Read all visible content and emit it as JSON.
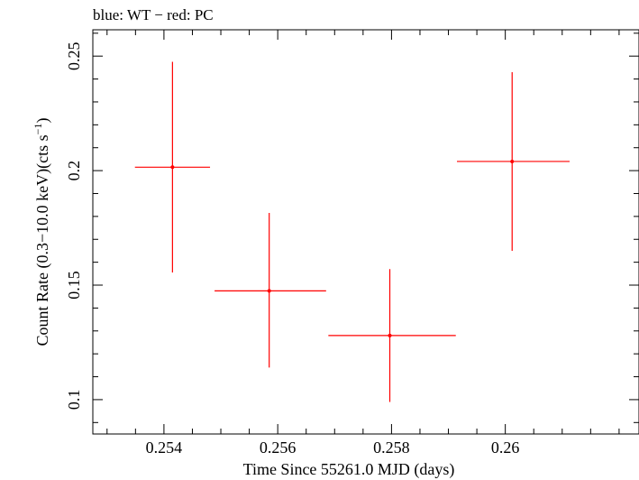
{
  "chart_data": {
    "type": "scatter",
    "title": "blue: WT − red: PC",
    "xlabel": "Time Since 55261.0 MJD (days)",
    "ylabel_main": "Count Rate (0.3−10.0 keV)(cts s",
    "ylabel_sup": "−1",
    "ylabel_end": ")",
    "xlim": [
      0.25275,
      0.26235
    ],
    "ylim": [
      0.085,
      0.2615
    ],
    "x_ticks": [
      {
        "value": 0.254,
        "label": "0.254"
      },
      {
        "value": 0.256,
        "label": "0.256"
      },
      {
        "value": 0.258,
        "label": "0.258"
      },
      {
        "value": 0.26,
        "label": "0.26"
      }
    ],
    "x_minor_step": 0.0005,
    "y_ticks": [
      {
        "value": 0.1,
        "label": "0.1"
      },
      {
        "value": 0.15,
        "label": "0.15"
      },
      {
        "value": 0.2,
        "label": "0.2"
      },
      {
        "value": 0.25,
        "label": "0.25"
      }
    ],
    "y_minor_step": 0.01,
    "grid": false,
    "series": [
      {
        "color": "#ff0000",
        "points": [
          {
            "x": 0.25415,
            "xlo": 0.25349,
            "xhi": 0.25481,
            "y": 0.2015,
            "ylo": 0.1555,
            "yhi": 0.2475
          },
          {
            "x": 0.25585,
            "xlo": 0.25489,
            "xhi": 0.25685,
            "y": 0.1475,
            "ylo": 0.114,
            "yhi": 0.1815
          },
          {
            "x": 0.25797,
            "xlo": 0.25689,
            "xhi": 0.25913,
            "y": 0.128,
            "ylo": 0.099,
            "yhi": 0.157
          },
          {
            "x": 0.26012,
            "xlo": 0.25915,
            "xhi": 0.26113,
            "y": 0.204,
            "ylo": 0.165,
            "yhi": 0.243
          }
        ]
      }
    ]
  }
}
